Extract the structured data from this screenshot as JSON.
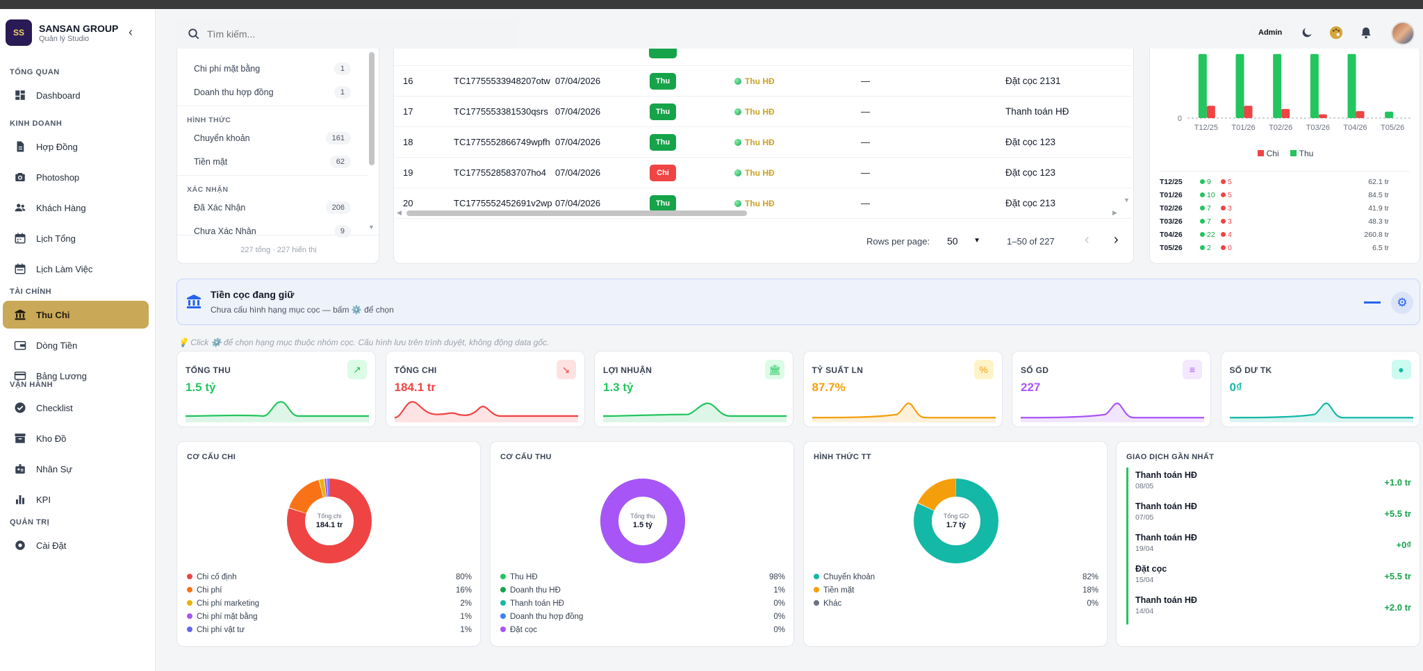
{
  "brand": {
    "name": "SANSAN GROUP",
    "subtitle": "Quản lý Studio",
    "logo": "SS"
  },
  "sidebar": {
    "sections": [
      {
        "title": "TỔNG QUAN",
        "items": [
          {
            "label": "Dashboard",
            "icon": "dashboard-icon"
          }
        ]
      },
      {
        "title": "KINH DOANH",
        "items": [
          {
            "label": "Hợp Đồng",
            "icon": "document-icon"
          },
          {
            "label": "Photoshop",
            "icon": "camera-icon"
          },
          {
            "label": "Khách Hàng",
            "icon": "users-icon"
          },
          {
            "label": "Lịch Tổng",
            "icon": "calendar-icon"
          },
          {
            "label": "Lịch Làm Việc",
            "icon": "calendar-check-icon"
          }
        ]
      },
      {
        "title": "TÀI CHÍNH",
        "items": [
          {
            "label": "Thu Chi",
            "icon": "bank-icon",
            "active": true
          },
          {
            "label": "Dòng Tiền",
            "icon": "wallet-icon"
          },
          {
            "label": "Bảng Lương",
            "icon": "card-icon"
          }
        ]
      },
      {
        "title": "VẬN HÀNH",
        "items": [
          {
            "label": "Checklist",
            "icon": "check-circle-icon"
          },
          {
            "label": "Kho Đồ",
            "icon": "archive-icon"
          },
          {
            "label": "Nhân Sự",
            "icon": "badge-icon"
          },
          {
            "label": "KPI",
            "icon": "bar-chart-icon"
          }
        ]
      },
      {
        "title": "QUẢN TRỊ",
        "items": [
          {
            "label": "Cài Đặt",
            "icon": "gear-icon"
          }
        ]
      }
    ]
  },
  "header": {
    "search_placeholder": "Tìm kiếm...",
    "role": "Admin"
  },
  "filters": {
    "items_top": [
      {
        "label": "Chi phí mặt bằng",
        "count": "1"
      },
      {
        "label": "Doanh thu hợp đồng",
        "count": "1"
      }
    ],
    "hinh_thuc_title": "HÌNH THỨC",
    "hinh_thuc": [
      {
        "label": "Chuyển khoản",
        "count": "161"
      },
      {
        "label": "Tiền mặt",
        "count": "62"
      }
    ],
    "xac_nhan_title": "XÁC NHẬN",
    "xac_nhan": [
      {
        "label": "Đã Xác Nhận",
        "count": "206"
      },
      {
        "label": "Chưa Xác Nhận",
        "count": "9"
      }
    ],
    "footer": "227 tổng · 227 hiển thị"
  },
  "table": {
    "rows": [
      {
        "no": "16",
        "code": "TC17755533948207otw",
        "date": "07/04/2026",
        "type": "Thu",
        "category": "Thu HĐ",
        "note": "—",
        "desc": "Đặt cọc 2131"
      },
      {
        "no": "17",
        "code": "TC1775553381530qsrs",
        "date": "07/04/2026",
        "type": "Thu",
        "category": "Thu HĐ",
        "note": "—",
        "desc": "Thanh toán HĐ"
      },
      {
        "no": "18",
        "code": "TC1775552866749wpfh",
        "date": "07/04/2026",
        "type": "Thu",
        "category": "Thu HĐ",
        "note": "—",
        "desc": "Đặt cọc 123"
      },
      {
        "no": "19",
        "code": "TC1775528583707ho4",
        "date": "07/04/2026",
        "type": "Chi",
        "category": "Thu HĐ",
        "note": "—",
        "desc": "Đặt cọc 123"
      },
      {
        "no": "20",
        "code": "TC1775552452691v2wp",
        "date": "07/04/2026",
        "type": "Thu",
        "category": "Thu HĐ",
        "note": "—",
        "desc": "Đặt cọc 213"
      }
    ],
    "pagination": {
      "rows_per_page_label": "Rows per page:",
      "rows_per_page": "50",
      "range": "1–50 of 227"
    }
  },
  "chart_data": {
    "type": "bar",
    "categories": [
      "T12/25",
      "T01/26",
      "T02/26",
      "T03/26",
      "T04/26",
      "T05/26"
    ],
    "series": [
      {
        "name": "Chi",
        "color": "#ef4444",
        "values": [
          23,
          23,
          17,
          7,
          13,
          0
        ]
      },
      {
        "name": "Thu",
        "color": "#22c55e",
        "values": [
          120,
          120,
          120,
          120,
          120,
          12
        ]
      }
    ],
    "y_tick": "0",
    "legend": [
      "Chi",
      "Thu"
    ],
    "rows": [
      {
        "month": "T12/25",
        "thu": "9",
        "chi": "5",
        "total": "62.1 tr"
      },
      {
        "month": "T01/26",
        "thu": "10",
        "chi": "5",
        "total": "84.5 tr"
      },
      {
        "month": "T02/26",
        "thu": "7",
        "chi": "3",
        "total": "41.9 tr"
      },
      {
        "month": "T03/26",
        "thu": "7",
        "chi": "3",
        "total": "48.3 tr"
      },
      {
        "month": "T04/26",
        "thu": "22",
        "chi": "4",
        "total": "260.8 tr"
      },
      {
        "month": "T05/26",
        "thu": "2",
        "chi": "0",
        "total": "6.5 tr"
      }
    ]
  },
  "deposit": {
    "title": "Tiền cọc đang giữ",
    "subtitle": "Chưa cấu hình hạng mục cọc — bấm ⚙️ để chọn",
    "hint": "💡 Click ⚙️ để chọn hạng mục thuộc nhóm cọc. Cấu hình lưu trên trình duyệt, không động data gốc."
  },
  "kpis": [
    {
      "title": "TỔNG THU",
      "value": "1.5 tỷ",
      "color": "#22c55e",
      "bg": "#dcfce7",
      "icon": "trend-up-icon",
      "glyph": "↗"
    },
    {
      "title": "TỔNG CHI",
      "value": "184.1 tr",
      "color": "#ef4444",
      "bg": "#fee2e2",
      "icon": "trend-down-icon",
      "glyph": "↘"
    },
    {
      "title": "LỢI NHUẬN",
      "value": "1.3 tỷ",
      "color": "#22c55e",
      "bg": "#dcfce7",
      "icon": "bank-icon",
      "glyph": "🏛"
    },
    {
      "title": "TỶ SUẤT LN",
      "value": "87.7%",
      "color": "#f59e0b",
      "bg": "#fef3c7",
      "icon": "percent-icon",
      "glyph": "%"
    },
    {
      "title": "SỐ GD",
      "value": "227",
      "color": "#a855f7",
      "bg": "#f3e8ff",
      "icon": "receipt-icon",
      "glyph": "≡"
    },
    {
      "title": "SỐ DƯ TK",
      "value": "0₫",
      "color": "#14b8a6",
      "bg": "#ccfbf1",
      "icon": "piggy-icon",
      "glyph": "●"
    }
  ],
  "donuts": [
    {
      "title": "CƠ CẤU CHI",
      "center_label": "Tổng chi",
      "center_value": "184.1 tr",
      "slices": [
        {
          "label": "Chi cố định",
          "pct": "80%",
          "value": 80,
          "color": "#ef4444"
        },
        {
          "label": "Chi phí",
          "pct": "16%",
          "value": 16,
          "color": "#f97316"
        },
        {
          "label": "Chi phí marketing",
          "pct": "2%",
          "value": 2,
          "color": "#eab308"
        },
        {
          "label": "Chi phí mặt bằng",
          "pct": "1%",
          "value": 1,
          "color": "#a855f7"
        },
        {
          "label": "Chi phí vật tư",
          "pct": "1%",
          "value": 1,
          "color": "#6366f1"
        }
      ]
    },
    {
      "title": "CƠ CẤU THU",
      "center_label": "Tổng thu",
      "center_value": "1.5 tỷ",
      "slices": [
        {
          "label": "Thu HĐ",
          "pct": "98%",
          "value": 98,
          "color": "#22c55e"
        },
        {
          "label": "Doanh thu HĐ",
          "pct": "1%",
          "value": 1,
          "color": "#16a34a"
        },
        {
          "label": "Thanh toán HĐ",
          "pct": "0%",
          "value": 0.5,
          "color": "#14b8a6"
        },
        {
          "label": "Doanh thu hợp đồng",
          "pct": "0%",
          "value": 0.3,
          "color": "#3b82f6"
        },
        {
          "label": "Đặt cọc",
          "pct": "0%",
          "value": 0.2,
          "color": "#a855f7"
        }
      ]
    },
    {
      "title": "HÌNH THỨC TT",
      "center_label": "Tổng GD",
      "center_value": "1.7 tỷ",
      "slices": [
        {
          "label": "Chuyển khoản",
          "pct": "82%",
          "value": 82,
          "color": "#14b8a6"
        },
        {
          "label": "Tiền mặt",
          "pct": "18%",
          "value": 18,
          "color": "#f59e0b"
        },
        {
          "label": "Khác",
          "pct": "0%",
          "value": 0,
          "color": "#6b7280"
        }
      ]
    }
  ],
  "recent": {
    "title": "GIAO DỊCH GẦN NHẤT",
    "items": [
      {
        "name": "Thanh toán HĐ",
        "date": "08/05",
        "amount": "+1.0 tr"
      },
      {
        "name": "Thanh toán HĐ",
        "date": "07/05",
        "amount": "+5.5 tr"
      },
      {
        "name": "Thanh toán HĐ",
        "date": "19/04",
        "amount": "+0₫"
      },
      {
        "name": "Đặt cọc",
        "date": "15/04",
        "amount": "+5.5 tr"
      },
      {
        "name": "Thanh toán HĐ",
        "date": "14/04",
        "amount": "+2.0 tr"
      }
    ]
  }
}
